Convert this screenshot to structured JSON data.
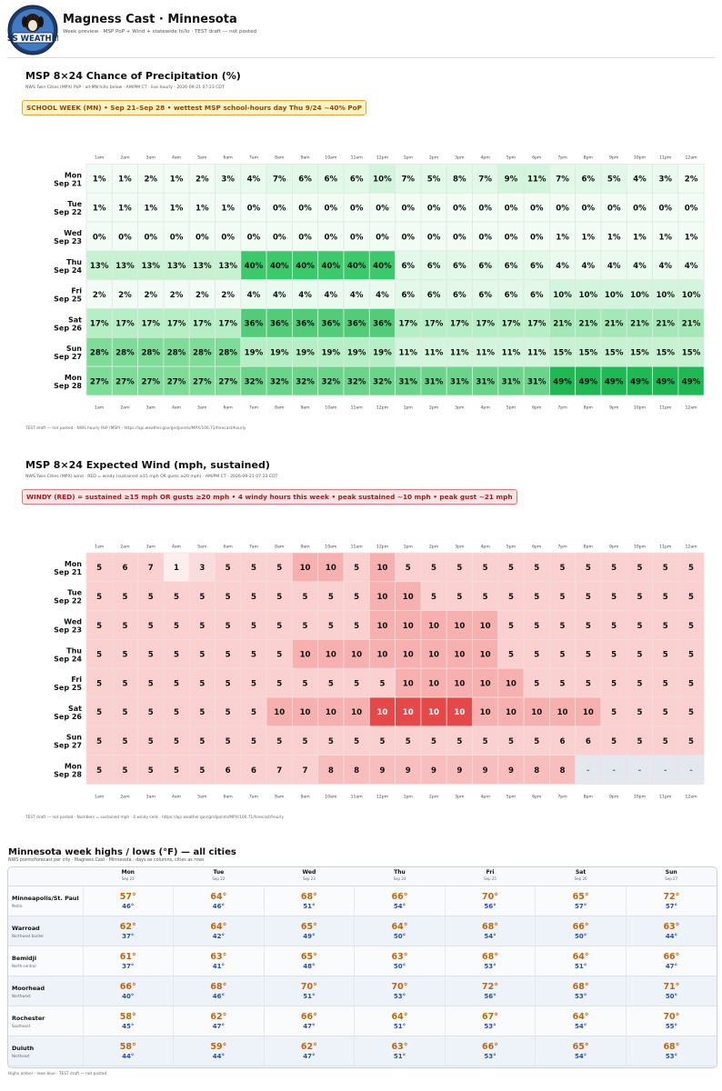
{
  "header": {
    "title": "Magness Cast · Minnesota",
    "subtitle": "Week preview · MSP PoP + Wind + statewide hi/lo · TEST draft — not posted",
    "logo_text": "MAGNESS WEATHER PAWS"
  },
  "precip": {
    "title": "MSP 8×24 Chance of Precipitation (%)",
    "subtitle": "NWS Twin Cities (MPX) PoP · all-MN hi/lo below · AM/PM CT · live hourly · 2026-09-21 07:23 CDT",
    "banner": "SCHOOL WEEK (MN)  •  Sep 21–Sep 28  •  wettest MSP school-hours day Thu 9/24 ~40% PoP",
    "footer": "TEST draft — not posted · NWS hourly PoP (MSP) · https://api.weather.gov/gridpoints/MPX/106,71/forecast/hourly",
    "rows": [
      {
        "day": "Mon",
        "date": "Sep 21",
        "values": [
          "1%",
          "1%",
          "2%",
          "1%",
          "2%",
          "3%",
          "4%",
          "7%",
          "6%",
          "6%",
          "6%",
          "10%",
          "7%",
          "5%",
          "8%",
          "7%",
          "9%",
          "11%",
          "7%",
          "6%",
          "5%",
          "4%",
          "3%",
          "2%"
        ]
      },
      {
        "day": "Tue",
        "date": "Sep 22",
        "values": [
          "1%",
          "1%",
          "1%",
          "1%",
          "1%",
          "1%",
          "0%",
          "0%",
          "0%",
          "0%",
          "0%",
          "0%",
          "0%",
          "0%",
          "0%",
          "0%",
          "0%",
          "0%",
          "0%",
          "0%",
          "0%",
          "0%",
          "0%",
          "0%"
        ]
      },
      {
        "day": "Wed",
        "date": "Sep 23",
        "values": [
          "0%",
          "0%",
          "0%",
          "0%",
          "0%",
          "0%",
          "0%",
          "0%",
          "0%",
          "0%",
          "0%",
          "0%",
          "0%",
          "0%",
          "0%",
          "0%",
          "0%",
          "0%",
          "1%",
          "1%",
          "1%",
          "1%",
          "1%",
          "1%"
        ]
      },
      {
        "day": "Thu",
        "date": "Sep 24",
        "values": [
          "13%",
          "13%",
          "13%",
          "13%",
          "13%",
          "13%",
          "40%",
          "40%",
          "40%",
          "40%",
          "40%",
          "40%",
          "6%",
          "6%",
          "6%",
          "6%",
          "6%",
          "6%",
          "4%",
          "4%",
          "4%",
          "4%",
          "4%",
          "4%"
        ]
      },
      {
        "day": "Fri",
        "date": "Sep 25",
        "values": [
          "2%",
          "2%",
          "2%",
          "2%",
          "2%",
          "2%",
          "4%",
          "4%",
          "4%",
          "4%",
          "4%",
          "4%",
          "6%",
          "6%",
          "6%",
          "6%",
          "6%",
          "6%",
          "10%",
          "10%",
          "10%",
          "10%",
          "10%",
          "10%"
        ]
      },
      {
        "day": "Sat",
        "date": "Sep 26",
        "values": [
          "17%",
          "17%",
          "17%",
          "17%",
          "17%",
          "17%",
          "36%",
          "36%",
          "36%",
          "36%",
          "36%",
          "36%",
          "17%",
          "17%",
          "17%",
          "17%",
          "17%",
          "17%",
          "21%",
          "21%",
          "21%",
          "21%",
          "21%",
          "21%"
        ]
      },
      {
        "day": "Sun",
        "date": "Sep 27",
        "values": [
          "28%",
          "28%",
          "28%",
          "28%",
          "28%",
          "28%",
          "19%",
          "19%",
          "19%",
          "19%",
          "19%",
          "19%",
          "11%",
          "11%",
          "11%",
          "11%",
          "11%",
          "11%",
          "15%",
          "15%",
          "15%",
          "15%",
          "15%",
          "15%"
        ]
      },
      {
        "day": "Mon",
        "date": "Sep 28",
        "values": [
          "27%",
          "27%",
          "27%",
          "27%",
          "27%",
          "27%",
          "32%",
          "32%",
          "32%",
          "32%",
          "32%",
          "32%",
          "31%",
          "31%",
          "31%",
          "31%",
          "31%",
          "31%",
          "49%",
          "49%",
          "49%",
          "49%",
          "49%",
          "49%"
        ]
      }
    ]
  },
  "wind": {
    "title": "MSP 8×24 Expected Wind (mph, sustained)",
    "subtitle": "NWS Twin Cities (MPX) wind · RED = windy (sustained ≥15 mph OR gusts ≥20 mph) · AM/PM CT · 2026-09-21 07:23 CDT",
    "banner": "WINDY (RED) = sustained ≥15 mph OR gusts ≥20 mph  •  4 windy hours this week  •  peak sustained ~10 mph  •  peak gust ~21 mph",
    "footer": "TEST draft — not posted · Numbers = sustained mph · 4 windy cells · https://api.weather.gov/gridpoints/MPX/106,71/forecast/hourly",
    "rows": [
      {
        "day": "Mon",
        "date": "Sep 21",
        "values": [
          "5",
          "6",
          "7",
          "1",
          "3",
          "5",
          "5",
          "5",
          "10",
          "10",
          "5",
          "10",
          "5",
          "5",
          "5",
          "5",
          "5",
          "5",
          "5",
          "5",
          "5",
          "5",
          "5",
          "5"
        ]
      },
      {
        "day": "Tue",
        "date": "Sep 22",
        "values": [
          "5",
          "5",
          "5",
          "5",
          "5",
          "5",
          "5",
          "5",
          "5",
          "5",
          "5",
          "10",
          "10",
          "5",
          "5",
          "5",
          "5",
          "5",
          "5",
          "5",
          "5",
          "5",
          "5",
          "5"
        ]
      },
      {
        "day": "Wed",
        "date": "Sep 23",
        "values": [
          "5",
          "5",
          "5",
          "5",
          "5",
          "5",
          "5",
          "5",
          "5",
          "5",
          "5",
          "10",
          "10",
          "10",
          "10",
          "10",
          "5",
          "5",
          "5",
          "5",
          "5",
          "5",
          "5",
          "5"
        ]
      },
      {
        "day": "Thu",
        "date": "Sep 24",
        "values": [
          "5",
          "5",
          "5",
          "5",
          "5",
          "5",
          "5",
          "5",
          "10",
          "10",
          "10",
          "10",
          "10",
          "10",
          "10",
          "10",
          "5",
          "5",
          "5",
          "5",
          "5",
          "5",
          "5",
          "5"
        ]
      },
      {
        "day": "Fri",
        "date": "Sep 25",
        "values": [
          "5",
          "5",
          "5",
          "5",
          "5",
          "5",
          "5",
          "5",
          "5",
          "5",
          "5",
          "5",
          "10",
          "10",
          "10",
          "10",
          "10",
          "5",
          "5",
          "5",
          "5",
          "5",
          "5",
          "5"
        ]
      },
      {
        "day": "Sat",
        "date": "Sep 26",
        "values": [
          "5",
          "5",
          "5",
          "5",
          "5",
          "5",
          "5",
          "10",
          "10",
          "10",
          "10",
          "10",
          "10",
          "10",
          "10",
          "10",
          "10",
          "10",
          "10",
          "10",
          "5",
          "5",
          "5",
          "5"
        ]
      },
      {
        "day": "Sun",
        "date": "Sep 27",
        "values": [
          "5",
          "5",
          "5",
          "5",
          "5",
          "5",
          "5",
          "5",
          "5",
          "5",
          "5",
          "5",
          "5",
          "5",
          "5",
          "5",
          "5",
          "5",
          "6",
          "6",
          "5",
          "5",
          "5",
          "5"
        ]
      },
      {
        "day": "Mon",
        "date": "Sep 28",
        "values": [
          "5",
          "5",
          "5",
          "5",
          "5",
          "6",
          "6",
          "7",
          "7",
          "8",
          "8",
          "9",
          "9",
          "9",
          "9",
          "9",
          "9",
          "8",
          "8",
          "-",
          "-",
          "-",
          "-",
          "-"
        ]
      }
    ]
  },
  "hours": [
    "1am",
    "2am",
    "3am",
    "4am",
    "5am",
    "6am",
    "7am",
    "8am",
    "9am",
    "10am",
    "11am",
    "12pm",
    "1pm",
    "2pm",
    "3pm",
    "4pm",
    "5pm",
    "6pm",
    "7pm",
    "8pm",
    "9pm",
    "10pm",
    "11pm",
    "12am"
  ],
  "week": {
    "title": "Minnesota week highs / lows (°F) — all cities",
    "subtitle": "NWS points/forecast per city · Magness Cast · Minnesota · days as columns, cities as rows",
    "footer": "Highs amber · lows blue · TEST draft — not posted",
    "days": [
      {
        "name": "Mon",
        "date": "Sep 21"
      },
      {
        "name": "Tue",
        "date": "Sep 22"
      },
      {
        "name": "Wed",
        "date": "Sep 23"
      },
      {
        "name": "Thu",
        "date": "Sep 24"
      },
      {
        "name": "Fri",
        "date": "Sep 25"
      },
      {
        "name": "Sat",
        "date": "Sep 26"
      },
      {
        "name": "Sun",
        "date": "Sep 27"
      }
    ],
    "cities": [
      {
        "name": "Minneapolis/St. Paul",
        "region": "Metro",
        "highs": [
          "57°",
          "64°",
          "68°",
          "66°",
          "70°",
          "65°",
          "72°"
        ],
        "lows": [
          "46°",
          "46°",
          "51°",
          "54°",
          "56°",
          "57°",
          "57°"
        ]
      },
      {
        "name": "Warroad",
        "region": "Northwest border",
        "highs": [
          "62°",
          "64°",
          "65°",
          "64°",
          "68°",
          "66°",
          "63°"
        ],
        "lows": [
          "37°",
          "42°",
          "49°",
          "50°",
          "54°",
          "50°",
          "44°"
        ]
      },
      {
        "name": "Bemidji",
        "region": "North-central",
        "highs": [
          "61°",
          "63°",
          "65°",
          "63°",
          "68°",
          "64°",
          "66°"
        ],
        "lows": [
          "37°",
          "41°",
          "48°",
          "50°",
          "53°",
          "51°",
          "47°"
        ]
      },
      {
        "name": "Moorhead",
        "region": "Northwest",
        "highs": [
          "66°",
          "68°",
          "70°",
          "70°",
          "72°",
          "68°",
          "71°"
        ],
        "lows": [
          "40°",
          "46°",
          "51°",
          "53°",
          "56°",
          "53°",
          "50°"
        ]
      },
      {
        "name": "Rochester",
        "region": "Southeast",
        "highs": [
          "58°",
          "62°",
          "66°",
          "64°",
          "67°",
          "64°",
          "70°"
        ],
        "lows": [
          "45°",
          "47°",
          "47°",
          "51°",
          "53°",
          "54°",
          "55°"
        ]
      },
      {
        "name": "Duluth",
        "region": "Northeast",
        "highs": [
          "58°",
          "59°",
          "62°",
          "63°",
          "66°",
          "65°",
          "68°"
        ],
        "lows": [
          "44°",
          "44°",
          "47°",
          "51°",
          "53°",
          "54°",
          "53°"
        ]
      }
    ]
  }
}
